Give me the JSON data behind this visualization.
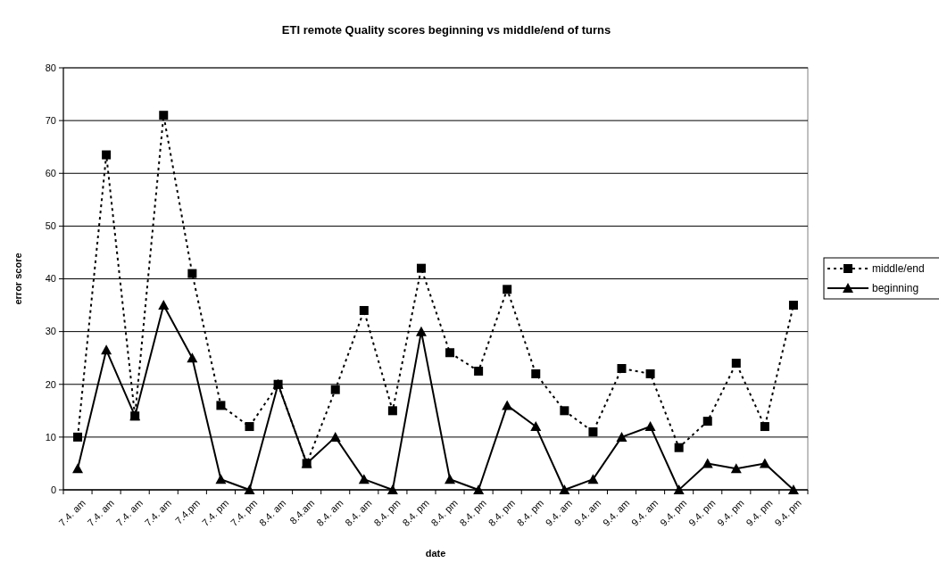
{
  "chart_data": {
    "type": "line",
    "title": "ETI remote Quality scores beginning vs middle/end of turns",
    "xlabel": "date",
    "ylabel": "error score",
    "categories": [
      "7.4. am",
      "7.4. am",
      "7.4. am",
      "7.4. am",
      "7.4.pm",
      "7.4. pm",
      "7.4. pm",
      "8.4. am",
      "8.4.am",
      "8.4. am",
      "8.4. am",
      "8.4. pm",
      "8.4. pm",
      "8.4. pm",
      "8.4. pm",
      "8.4. pm",
      "8.4. pm",
      "9.4. am",
      "9.4. am",
      "9.4. am",
      "9.4. am",
      "9.4. pm",
      "9.4. pm",
      "9.4. pm",
      "9.4. pm",
      "9.4. pm"
    ],
    "series": [
      {
        "name": "middle/end",
        "color": "#000000",
        "marker": "square",
        "line_style": "dotted",
        "values": [
          10,
          63.5,
          14,
          71,
          41,
          16,
          12,
          20,
          5,
          19,
          34,
          15,
          42,
          26,
          22.5,
          38,
          22,
          15,
          11,
          23,
          22,
          8,
          13,
          24,
          12,
          35
        ]
      },
      {
        "name": "beginning",
        "color": "#000000",
        "marker": "triangle",
        "line_style": "solid",
        "values": [
          4,
          26.5,
          14,
          35,
          25,
          2,
          0,
          20,
          5,
          10,
          2,
          0,
          30,
          2,
          0,
          16,
          12,
          0,
          2,
          10,
          12,
          0,
          5,
          4,
          5,
          0
        ]
      }
    ],
    "ylim": [
      0,
      80
    ],
    "yticks": [
      0,
      10,
      20,
      30,
      40,
      50,
      60,
      70,
      80
    ],
    "grid": "y",
    "legend": "right"
  }
}
